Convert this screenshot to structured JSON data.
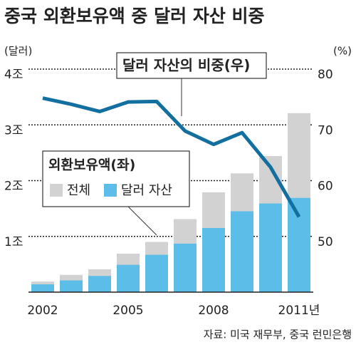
{
  "chart_data": {
    "type": "bar",
    "title": "중국 외환보유액 중 달러 자산 비중",
    "y_label": "(달러)",
    "y2_label": "(%)",
    "categories": [
      "2002",
      null,
      null,
      "2005",
      null,
      null,
      "2008",
      null,
      null,
      "2011년"
    ],
    "legend_title": "외환보유액(좌)",
    "series": [
      {
        "name": "전체",
        "color": "#d2d2d2",
        "values": [
          0.19,
          0.31,
          0.41,
          0.69,
          0.9,
          1.31,
          1.79,
          2.13,
          2.44,
          3.21
        ]
      },
      {
        "name": "달러 자산",
        "color": "#5bbde8",
        "values": [
          0.14,
          0.21,
          0.29,
          0.49,
          0.67,
          0.87,
          1.15,
          1.45,
          1.59,
          1.69
        ]
      },
      {
        "name": "달러 자산의 비중(우)",
        "color": "#136f9f",
        "axis": "y2",
        "type": "line",
        "values": [
          74.8,
          73.7,
          72.4,
          74.1,
          74.2,
          68.9,
          66.5,
          68.6,
          62.4,
          53.5
        ]
      }
    ],
    "ylim": [
      0,
      4
    ],
    "yticks": [
      {
        "value": 1,
        "label": "1조"
      },
      {
        "value": 2,
        "label": "2조"
      },
      {
        "value": 3,
        "label": "3조"
      },
      {
        "value": 4,
        "label": "4조"
      }
    ],
    "y2lim": [
      40,
      80
    ],
    "y2ticks": [
      50,
      60,
      70,
      80
    ],
    "grid": true,
    "source": "자료: 미국 재무부, 중국 런민은행"
  }
}
